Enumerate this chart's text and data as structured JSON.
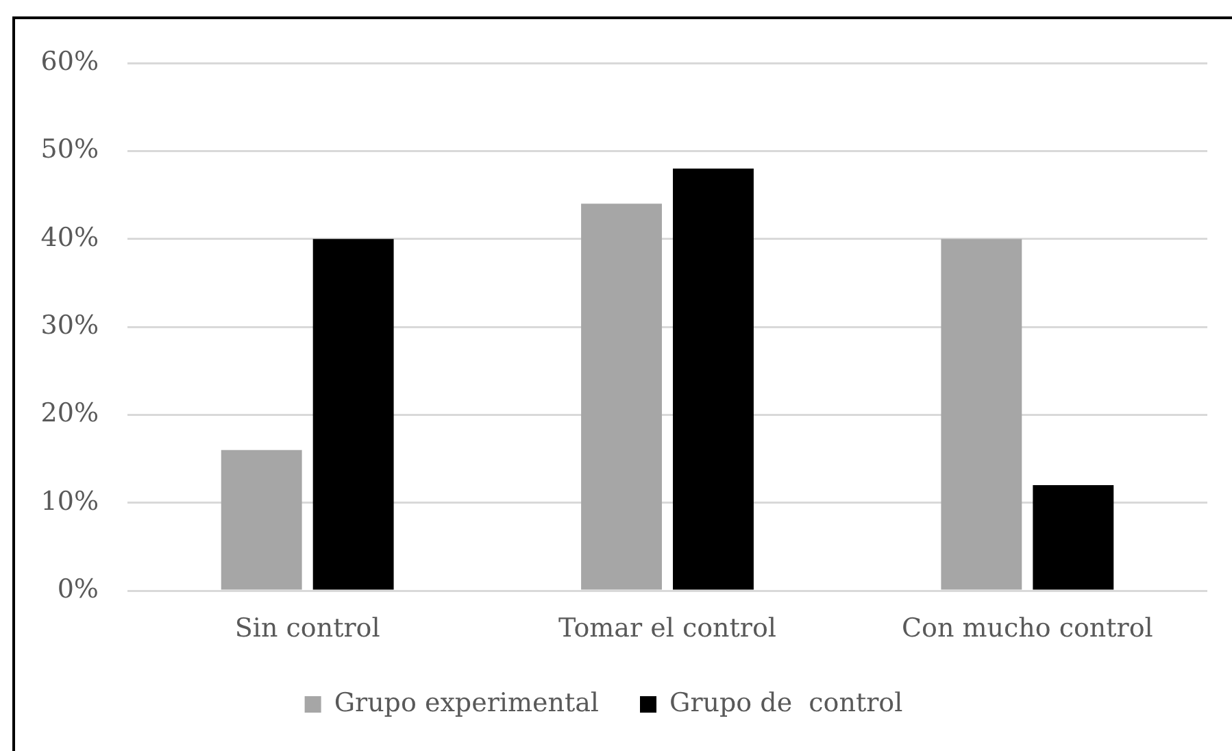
{
  "chart_data": {
    "type": "bar",
    "categories": [
      "Sin control",
      "Tomar el control",
      "Con mucho control"
    ],
    "series": [
      {
        "name": "Grupo experimental",
        "color": "#a6a6a6",
        "values": [
          16,
          44,
          40
        ]
      },
      {
        "name": "Grupo de  control",
        "color": "#000000",
        "values": [
          40,
          48,
          12
        ]
      }
    ],
    "ylim": [
      0,
      60
    ],
    "yticks": [
      {
        "value": 0,
        "label": "0%"
      },
      {
        "value": 10,
        "label": "10%"
      },
      {
        "value": 20,
        "label": "20%"
      },
      {
        "value": 30,
        "label": "30%"
      },
      {
        "value": 40,
        "label": "40%"
      },
      {
        "value": 50,
        "label": "50%"
      },
      {
        "value": 60,
        "label": "60%"
      }
    ],
    "grid": "y",
    "legend": "bottom"
  }
}
